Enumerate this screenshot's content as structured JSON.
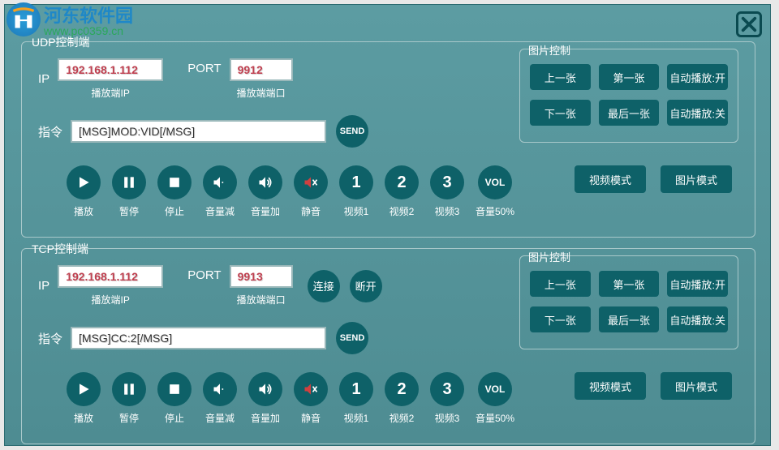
{
  "watermark": {
    "cn_text": "河东软件园",
    "url_text": "www.pc0359.cn"
  },
  "colors": {
    "bg": "#5a9aa0",
    "btn": "#0e6168",
    "input_text": "#c04050",
    "border": "#a8c8ca",
    "mute": "#d04040"
  },
  "udp": {
    "title": "UDP控制端",
    "ip_label": "IP",
    "ip_value": "192.168.1.112",
    "ip_sublabel": "播放端IP",
    "port_label": "PORT",
    "port_value": "9912",
    "port_sublabel": "播放端端口",
    "cmd_label": "指令",
    "cmd_value": "[MSG]MOD:VID[/MSG]",
    "send_label": "SEND"
  },
  "tcp": {
    "title": "TCP控制端",
    "ip_label": "IP",
    "ip_value": "192.168.1.112",
    "ip_sublabel": "播放端IP",
    "port_label": "PORT",
    "port_value": "9913",
    "port_sublabel": "播放端端口",
    "connect_label": "连接",
    "disconnect_label": "断开",
    "cmd_label": "指令",
    "cmd_value": "[MSG]CC:2[/MSG]",
    "send_label": "SEND"
  },
  "controls": {
    "play": "播放",
    "pause": "暂停",
    "stop": "停止",
    "vol_down": "音量减",
    "vol_up": "音量加",
    "mute": "静音",
    "video1": "视频1",
    "video1_num": "1",
    "video2": "视频2",
    "video2_num": "2",
    "video3": "视频3",
    "video3_num": "3",
    "vol50": "音量50%",
    "vol_text": "VOL"
  },
  "image_ctrl": {
    "title": "图片控制",
    "prev": "上一张",
    "first": "第一张",
    "autoplay_on": "自动播放:开",
    "next": "下一张",
    "last": "最后一张",
    "autoplay_off": "自动播放:关"
  },
  "modes": {
    "video": "视频模式",
    "image": "图片模式"
  }
}
